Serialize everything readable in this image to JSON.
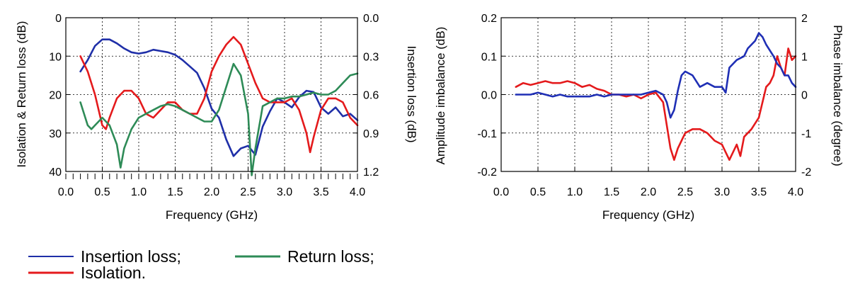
{
  "colors": {
    "insertion": "#1f2fa8",
    "isolation": "#e41a1c",
    "return": "#2e8b57",
    "amplitude": "#e41a1c",
    "phase": "#1f2fb5"
  },
  "legend": {
    "insertion": "Insertion loss;",
    "return": "Return loss;",
    "isolation": "Isolation."
  },
  "chart_data": [
    {
      "type": "line",
      "xlabel": "Frequency (GHz)",
      "ylabel_left": "Isolation & Return loss (dB)",
      "ylabel_right": "Insertion loss (dB)",
      "xlim": [
        0.0,
        4.0
      ],
      "ylim_left": [
        0,
        40
      ],
      "ylim_right": [
        0.0,
        1.2
      ],
      "x_ticks": [
        "0.0",
        "0.5",
        "1.0",
        "1.5",
        "2.0",
        "2.5",
        "3.0",
        "3.5",
        "4.0"
      ],
      "y_ticks_left": [
        "0",
        "10",
        "20",
        "30",
        "40"
      ],
      "y_ticks_right": [
        "0.0",
        "0.3",
        "0.6",
        "0.9",
        "1.2"
      ],
      "grid": true,
      "series": [
        {
          "name": "Insertion loss",
          "axis": "right",
          "color": "#1f2fa8",
          "x": [
            0.2,
            0.3,
            0.4,
            0.5,
            0.6,
            0.7,
            0.8,
            0.9,
            1.0,
            1.1,
            1.2,
            1.3,
            1.4,
            1.5,
            1.6,
            1.7,
            1.8,
            1.9,
            2.0,
            2.1,
            2.2,
            2.3,
            2.4,
            2.5,
            2.6,
            2.7,
            2.8,
            2.9,
            3.0,
            3.1,
            3.2,
            3.3,
            3.4,
            3.5,
            3.6,
            3.7,
            3.8,
            3.9,
            4.0
          ],
          "y": [
            0.42,
            0.33,
            0.22,
            0.17,
            0.17,
            0.2,
            0.24,
            0.27,
            0.28,
            0.27,
            0.25,
            0.26,
            0.27,
            0.29,
            0.33,
            0.38,
            0.43,
            0.55,
            0.71,
            0.78,
            0.95,
            1.08,
            1.02,
            1.0,
            1.07,
            0.85,
            0.73,
            0.63,
            0.66,
            0.7,
            0.62,
            0.57,
            0.58,
            0.7,
            0.75,
            0.7,
            0.77,
            0.75,
            0.8
          ]
        },
        {
          "name": "Isolation",
          "axis": "left",
          "color": "#e41a1c",
          "x": [
            0.2,
            0.3,
            0.4,
            0.5,
            0.55,
            0.6,
            0.7,
            0.8,
            0.9,
            1.0,
            1.1,
            1.2,
            1.3,
            1.4,
            1.5,
            1.6,
            1.7,
            1.8,
            1.9,
            2.0,
            2.1,
            2.2,
            2.3,
            2.4,
            2.5,
            2.6,
            2.7,
            2.8,
            2.9,
            3.0,
            3.1,
            3.2,
            3.3,
            3.35,
            3.4,
            3.5,
            3.6,
            3.7,
            3.8,
            3.9,
            4.0
          ],
          "y": [
            10,
            14,
            20,
            28,
            29,
            26,
            21,
            19,
            19,
            21,
            25,
            26,
            24,
            22,
            22,
            24,
            25,
            25,
            21,
            14,
            10,
            7,
            5,
            7,
            12,
            17,
            21,
            22,
            22,
            22,
            21,
            24,
            30,
            35,
            31,
            24,
            21,
            21,
            22,
            26,
            28
          ]
        },
        {
          "name": "Return loss",
          "axis": "left",
          "color": "#2e8b57",
          "x": [
            0.2,
            0.3,
            0.35,
            0.4,
            0.5,
            0.6,
            0.7,
            0.75,
            0.8,
            0.9,
            1.0,
            1.1,
            1.2,
            1.3,
            1.4,
            1.5,
            1.6,
            1.7,
            1.8,
            1.9,
            2.0,
            2.1,
            2.2,
            2.3,
            2.4,
            2.5,
            2.55,
            2.6,
            2.7,
            2.8,
            2.9,
            3.0,
            3.1,
            3.2,
            3.3,
            3.4,
            3.5,
            3.6,
            3.7,
            3.8,
            3.9,
            4.0
          ],
          "y": [
            22,
            28,
            29,
            28,
            26,
            28,
            33,
            39,
            34,
            29,
            26,
            25,
            24,
            23,
            22.5,
            23,
            24,
            25,
            26,
            27,
            27,
            24,
            18,
            12,
            15,
            25,
            41,
            34,
            23,
            22,
            21,
            21,
            20.5,
            20.5,
            20,
            19.5,
            20,
            20,
            19,
            17,
            15,
            14.5
          ]
        }
      ]
    },
    {
      "type": "line",
      "xlabel": "Frequency (GHz)",
      "ylabel_left": "Amplitude imbalance (dB)",
      "ylabel_right": "Phase imbalance (degree)",
      "xlim": [
        0.0,
        4.0
      ],
      "ylim_left": [
        -0.2,
        0.2
      ],
      "ylim_right": [
        -2,
        2
      ],
      "x_ticks": [
        "0.0",
        "0.5",
        "1.0",
        "1.5",
        "2.0",
        "2.5",
        "3.0",
        "3.5",
        "4.0"
      ],
      "y_ticks_left": [
        "0.2",
        "0.1",
        "0.0",
        "-0.1",
        "-0.2"
      ],
      "y_ticks_right": [
        "2",
        "1",
        "0",
        "-1",
        "-2"
      ],
      "grid": true,
      "series": [
        {
          "name": "Amplitude imbalance",
          "axis": "left",
          "color": "#e41a1c",
          "x": [
            0.2,
            0.3,
            0.4,
            0.5,
            0.6,
            0.7,
            0.8,
            0.9,
            1.0,
            1.1,
            1.2,
            1.3,
            1.4,
            1.5,
            1.6,
            1.7,
            1.8,
            1.9,
            2.0,
            2.1,
            2.2,
            2.25,
            2.3,
            2.35,
            2.4,
            2.5,
            2.6,
            2.7,
            2.8,
            2.9,
            3.0,
            3.05,
            3.1,
            3.2,
            3.25,
            3.3,
            3.4,
            3.5,
            3.6,
            3.65,
            3.7,
            3.75,
            3.8,
            3.85,
            3.9,
            3.95,
            4.0
          ],
          "y": [
            0.02,
            0.03,
            0.025,
            0.03,
            0.035,
            0.03,
            0.03,
            0.035,
            0.03,
            0.02,
            0.025,
            0.015,
            0.01,
            0.0,
            0.0,
            -0.005,
            0.0,
            -0.01,
            0.0,
            0.005,
            -0.02,
            -0.08,
            -0.14,
            -0.17,
            -0.14,
            -0.1,
            -0.09,
            -0.09,
            -0.1,
            -0.12,
            -0.13,
            -0.15,
            -0.17,
            -0.13,
            -0.16,
            -0.11,
            -0.09,
            -0.06,
            0.02,
            0.03,
            0.05,
            0.1,
            0.07,
            0.05,
            0.12,
            0.09,
            0.1
          ]
        },
        {
          "name": "Phase imbalance",
          "axis": "right",
          "color": "#1f2fb5",
          "x": [
            0.2,
            0.3,
            0.4,
            0.5,
            0.6,
            0.7,
            0.8,
            0.9,
            1.0,
            1.1,
            1.2,
            1.3,
            1.4,
            1.5,
            1.6,
            1.7,
            1.8,
            1.9,
            2.0,
            2.1,
            2.2,
            2.25,
            2.3,
            2.35,
            2.4,
            2.45,
            2.5,
            2.6,
            2.7,
            2.8,
            2.9,
            3.0,
            3.05,
            3.1,
            3.2,
            3.3,
            3.35,
            3.4,
            3.45,
            3.5,
            3.55,
            3.6,
            3.7,
            3.75,
            3.8,
            3.85,
            3.9,
            3.95,
            4.0
          ],
          "y": [
            0.0,
            0.0,
            0.0,
            0.05,
            0.0,
            -0.05,
            0.0,
            -0.05,
            -0.05,
            -0.05,
            -0.05,
            0.0,
            -0.05,
            0.0,
            0.0,
            0.0,
            0.0,
            0.0,
            0.05,
            0.1,
            0.0,
            -0.2,
            -0.6,
            -0.4,
            0.1,
            0.5,
            0.6,
            0.5,
            0.2,
            0.3,
            0.2,
            0.2,
            0.05,
            0.7,
            0.9,
            1.0,
            1.2,
            1.3,
            1.4,
            1.6,
            1.5,
            1.3,
            1.0,
            0.8,
            0.7,
            0.5,
            0.5,
            0.3,
            0.2
          ]
        }
      ]
    }
  ]
}
